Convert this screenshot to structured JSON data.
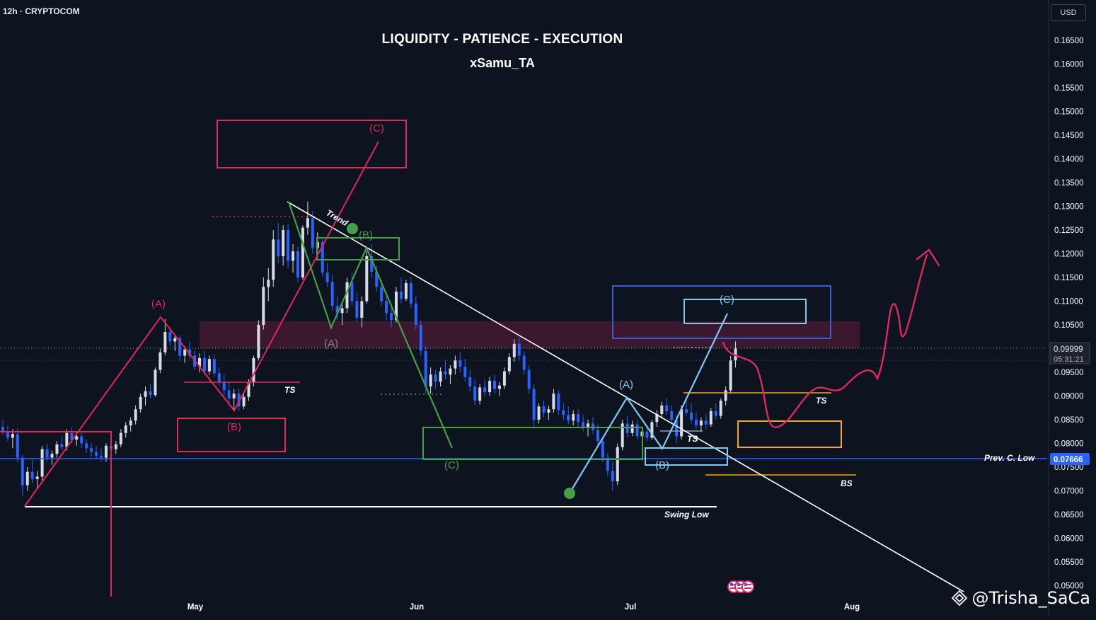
{
  "header": {
    "interval_exchange": "12h · CRYPTOCOM",
    "title": "LIQUIDITY - PATIENCE - EXECUTION",
    "subtitle": "xSamu_TA",
    "currency_button": "USD"
  },
  "watermark": {
    "text": "@Trisha_SaCa",
    "logo_icon": "binance-diamond-icon"
  },
  "colors": {
    "background": "#0e1320",
    "bull": "#d6dbe6",
    "bear": "#2962ff",
    "red": "#e0285a",
    "green": "#43a047",
    "lightblue": "#7fc8f0",
    "blue": "#3a5bd9",
    "orange": "#f5a623",
    "white": "#ffffff",
    "zone": "#5c1c3a"
  },
  "chart_data": {
    "type": "candlestick",
    "y_axis": {
      "ticks": [
        "0.16500",
        "0.16000",
        "0.15500",
        "0.15000",
        "0.14500",
        "0.14000",
        "0.13500",
        "0.13000",
        "0.12500",
        "0.12000",
        "0.11500",
        "0.11000",
        "0.10500",
        "0.10000",
        "0.09500",
        "0.09000",
        "0.08500",
        "0.08000",
        "0.07500",
        "0.07000",
        "0.06500",
        "0.06000",
        "0.05500",
        "0.05000"
      ],
      "range": [
        0.0495,
        0.168
      ]
    },
    "x_axis": {
      "ticks": [
        "May",
        "Jun",
        "Jul",
        "Aug"
      ]
    },
    "current_price": {
      "value": "0.09999",
      "countdown": "05:31:21"
    },
    "prev_c_low": {
      "value": "0.07666",
      "label": "Prev. C. Low"
    },
    "annotations": {
      "red_wave": {
        "labels": [
          "(A)",
          "(B)",
          "(C)"
        ]
      },
      "green_wave": {
        "labels": [
          "(A)",
          "(B)",
          "(C)"
        ]
      },
      "blue_wave": {
        "labels": [
          "(A)",
          "(B)",
          "(C)"
        ]
      },
      "level_labels": [
        "TS",
        "TS",
        "TS",
        "BS",
        "Swing Low"
      ],
      "trend_label": "Trend"
    },
    "candles_ohlc": [
      [
        0.0835,
        0.085,
        0.0818,
        0.0826
      ],
      [
        0.0826,
        0.0838,
        0.0805,
        0.0812
      ],
      [
        0.0812,
        0.083,
        0.079,
        0.082
      ],
      [
        0.082,
        0.0832,
        0.076,
        0.077
      ],
      [
        0.077,
        0.0775,
        0.069,
        0.0712
      ],
      [
        0.0712,
        0.075,
        0.07,
        0.074
      ],
      [
        0.074,
        0.0765,
        0.0715,
        0.0725
      ],
      [
        0.0725,
        0.0742,
        0.0705,
        0.073
      ],
      [
        0.073,
        0.0795,
        0.0722,
        0.0788
      ],
      [
        0.0788,
        0.08,
        0.0762,
        0.077
      ],
      [
        0.077,
        0.0785,
        0.0755,
        0.0778
      ],
      [
        0.0778,
        0.0805,
        0.077,
        0.0798
      ],
      [
        0.0798,
        0.0815,
        0.0785,
        0.0792
      ],
      [
        0.0792,
        0.083,
        0.0785,
        0.0822
      ],
      [
        0.0822,
        0.0835,
        0.08,
        0.0808
      ],
      [
        0.0808,
        0.0825,
        0.0795,
        0.0815
      ],
      [
        0.0815,
        0.0822,
        0.079,
        0.08
      ],
      [
        0.08,
        0.0808,
        0.078,
        0.079
      ],
      [
        0.079,
        0.08,
        0.0772,
        0.0782
      ],
      [
        0.0782,
        0.0795,
        0.0766,
        0.0774
      ],
      [
        0.0774,
        0.079,
        0.0762,
        0.077
      ],
      [
        0.077,
        0.08,
        0.0762,
        0.0795
      ],
      [
        0.0795,
        0.081,
        0.078,
        0.0788
      ],
      [
        0.0788,
        0.0805,
        0.0778,
        0.0798
      ],
      [
        0.0798,
        0.083,
        0.0792,
        0.0822
      ],
      [
        0.0822,
        0.0845,
        0.0812,
        0.0838
      ],
      [
        0.0838,
        0.0855,
        0.0825,
        0.0848
      ],
      [
        0.0848,
        0.088,
        0.084,
        0.0872
      ],
      [
        0.0872,
        0.0905,
        0.0865,
        0.0898
      ],
      [
        0.0898,
        0.092,
        0.088,
        0.091
      ],
      [
        0.091,
        0.0925,
        0.0895,
        0.0902
      ],
      [
        0.0902,
        0.096,
        0.0898,
        0.0955
      ],
      [
        0.0955,
        0.1,
        0.0948,
        0.0992
      ],
      [
        0.0992,
        0.1062,
        0.0985,
        0.1035
      ],
      [
        0.1035,
        0.1045,
        0.1005,
        0.1015
      ],
      [
        0.1015,
        0.103,
        0.0995,
        0.1022
      ],
      [
        0.1022,
        0.1028,
        0.0975,
        0.0985
      ],
      [
        0.0985,
        0.1005,
        0.097,
        0.0998
      ],
      [
        0.0998,
        0.1015,
        0.0978,
        0.0985
      ],
      [
        0.0985,
        0.0995,
        0.0955,
        0.0962
      ],
      [
        0.0962,
        0.099,
        0.095,
        0.098
      ],
      [
        0.098,
        0.0995,
        0.0945,
        0.0952
      ],
      [
        0.0952,
        0.0985,
        0.0945,
        0.0978
      ],
      [
        0.0978,
        0.0988,
        0.094,
        0.0948
      ],
      [
        0.0948,
        0.096,
        0.092,
        0.093
      ],
      [
        0.093,
        0.0945,
        0.09,
        0.0912
      ],
      [
        0.0912,
        0.093,
        0.088,
        0.0895
      ],
      [
        0.0895,
        0.0915,
        0.087,
        0.0905
      ],
      [
        0.0905,
        0.0915,
        0.0868,
        0.0878
      ],
      [
        0.0878,
        0.0905,
        0.0872,
        0.0898
      ],
      [
        0.0898,
        0.0935,
        0.089,
        0.0928
      ],
      [
        0.0928,
        0.0985,
        0.092,
        0.098
      ],
      [
        0.098,
        0.106,
        0.0975,
        0.105
      ],
      [
        0.105,
        0.115,
        0.104,
        0.113
      ],
      [
        0.113,
        0.117,
        0.11,
        0.1145
      ],
      [
        0.1145,
        0.125,
        0.113,
        0.123
      ],
      [
        0.123,
        0.1265,
        0.118,
        0.1195
      ],
      [
        0.1195,
        0.126,
        0.1175,
        0.125
      ],
      [
        0.125,
        0.1262,
        0.117,
        0.1185
      ],
      [
        0.1185,
        0.122,
        0.116,
        0.1205
      ],
      [
        0.1205,
        0.1215,
        0.114,
        0.115
      ],
      [
        0.115,
        0.126,
        0.1145,
        0.1255
      ],
      [
        0.1255,
        0.131,
        0.124,
        0.1275
      ],
      [
        0.1275,
        0.129,
        0.12,
        0.1212
      ],
      [
        0.1212,
        0.1245,
        0.119,
        0.1225
      ],
      [
        0.1225,
        0.1235,
        0.115,
        0.116
      ],
      [
        0.116,
        0.118,
        0.113,
        0.114
      ],
      [
        0.114,
        0.1155,
        0.108,
        0.109
      ],
      [
        0.109,
        0.111,
        0.106,
        0.1075
      ],
      [
        0.1075,
        0.11,
        0.105,
        0.1085
      ],
      [
        0.1085,
        0.115,
        0.1075,
        0.114
      ],
      [
        0.114,
        0.116,
        0.109,
        0.11
      ],
      [
        0.11,
        0.112,
        0.1055,
        0.1065
      ],
      [
        0.1065,
        0.111,
        0.1045,
        0.11
      ],
      [
        0.11,
        0.1205,
        0.1095,
        0.1195
      ],
      [
        0.1195,
        0.122,
        0.115,
        0.1162
      ],
      [
        0.1162,
        0.1175,
        0.112,
        0.113
      ],
      [
        0.113,
        0.1145,
        0.109,
        0.11
      ],
      [
        0.11,
        0.112,
        0.106,
        0.1075
      ],
      [
        0.1075,
        0.1095,
        0.1045,
        0.106
      ],
      [
        0.106,
        0.113,
        0.1055,
        0.112
      ],
      [
        0.112,
        0.115,
        0.1095,
        0.1105
      ],
      [
        0.1105,
        0.1145,
        0.11,
        0.1138
      ],
      [
        0.1138,
        0.115,
        0.1085,
        0.1095
      ],
      [
        0.1095,
        0.111,
        0.104,
        0.105
      ],
      [
        0.105,
        0.106,
        0.0985,
        0.0995
      ],
      [
        0.0995,
        0.1005,
        0.0905,
        0.092
      ],
      [
        0.092,
        0.096,
        0.0905,
        0.0945
      ],
      [
        0.0945,
        0.0955,
        0.0915,
        0.093
      ],
      [
        0.093,
        0.096,
        0.092,
        0.0952
      ],
      [
        0.0952,
        0.0975,
        0.0935,
        0.0945
      ],
      [
        0.0945,
        0.0965,
        0.0925,
        0.0958
      ],
      [
        0.0958,
        0.0985,
        0.0945,
        0.0975
      ],
      [
        0.0975,
        0.0992,
        0.095,
        0.0962
      ],
      [
        0.0962,
        0.0978,
        0.093,
        0.094
      ],
      [
        0.094,
        0.0955,
        0.091,
        0.092
      ],
      [
        0.092,
        0.0935,
        0.088,
        0.089
      ],
      [
        0.089,
        0.0925,
        0.0882,
        0.0918
      ],
      [
        0.0918,
        0.0935,
        0.09,
        0.0908
      ],
      [
        0.0908,
        0.094,
        0.09,
        0.0932
      ],
      [
        0.0932,
        0.0945,
        0.0905,
        0.0915
      ],
      [
        0.0915,
        0.093,
        0.09,
        0.0922
      ],
      [
        0.0922,
        0.096,
        0.0915,
        0.0952
      ],
      [
        0.0952,
        0.099,
        0.0945,
        0.0982
      ],
      [
        0.0982,
        0.102,
        0.0972,
        0.101
      ],
      [
        0.101,
        0.1025,
        0.0975,
        0.0985
      ],
      [
        0.0985,
        0.0995,
        0.0945,
        0.0955
      ],
      [
        0.0955,
        0.0965,
        0.0905,
        0.0915
      ],
      [
        0.0915,
        0.0925,
        0.0835,
        0.085
      ],
      [
        0.085,
        0.0885,
        0.0842,
        0.0878
      ],
      [
        0.0878,
        0.089,
        0.0855,
        0.0865
      ],
      [
        0.0865,
        0.088,
        0.085,
        0.0872
      ],
      [
        0.0872,
        0.0915,
        0.0865,
        0.0905
      ],
      [
        0.0905,
        0.0912,
        0.086,
        0.087
      ],
      [
        0.087,
        0.0885,
        0.085,
        0.086
      ],
      [
        0.086,
        0.0878,
        0.084,
        0.0848
      ],
      [
        0.0848,
        0.087,
        0.0838,
        0.0862
      ],
      [
        0.0862,
        0.0872,
        0.0835,
        0.0845
      ],
      [
        0.0845,
        0.086,
        0.0825,
        0.0835
      ],
      [
        0.0835,
        0.085,
        0.0815,
        0.0842
      ],
      [
        0.0842,
        0.0855,
        0.082,
        0.0828
      ],
      [
        0.0828,
        0.084,
        0.0795,
        0.0805
      ],
      [
        0.0805,
        0.0815,
        0.076,
        0.077
      ],
      [
        0.077,
        0.078,
        0.073,
        0.0742
      ],
      [
        0.0742,
        0.076,
        0.07,
        0.072
      ],
      [
        0.072,
        0.08,
        0.0712,
        0.0792
      ],
      [
        0.0792,
        0.085,
        0.0785,
        0.0842
      ],
      [
        0.0842,
        0.0858,
        0.0812,
        0.0822
      ],
      [
        0.0822,
        0.0848,
        0.0815,
        0.084
      ],
      [
        0.084,
        0.085,
        0.0808,
        0.0815
      ],
      [
        0.0815,
        0.0832,
        0.0795,
        0.0825
      ],
      [
        0.0825,
        0.0838,
        0.0805,
        0.0812
      ],
      [
        0.0812,
        0.085,
        0.0808,
        0.0845
      ],
      [
        0.0845,
        0.087,
        0.0835,
        0.0862
      ],
      [
        0.0862,
        0.0888,
        0.0852,
        0.088
      ],
      [
        0.088,
        0.0895,
        0.086,
        0.0868
      ],
      [
        0.0868,
        0.088,
        0.084,
        0.085
      ],
      [
        0.085,
        0.086,
        0.08,
        0.0815
      ],
      [
        0.0815,
        0.088,
        0.0808,
        0.0872
      ],
      [
        0.0872,
        0.09,
        0.0858,
        0.0865
      ],
      [
        0.0865,
        0.0885,
        0.0842,
        0.085
      ],
      [
        0.085,
        0.0865,
        0.083,
        0.0838
      ],
      [
        0.0838,
        0.0855,
        0.0825,
        0.0848
      ],
      [
        0.0848,
        0.0862,
        0.083,
        0.084
      ],
      [
        0.084,
        0.0875,
        0.0835,
        0.0868
      ],
      [
        0.0868,
        0.0885,
        0.085,
        0.0858
      ],
      [
        0.0858,
        0.0895,
        0.0852,
        0.089
      ],
      [
        0.089,
        0.092,
        0.088,
        0.0912
      ],
      [
        0.0912,
        0.0985,
        0.0905,
        0.0975
      ],
      [
        0.0975,
        0.1015,
        0.096,
        0.1
      ]
    ]
  }
}
